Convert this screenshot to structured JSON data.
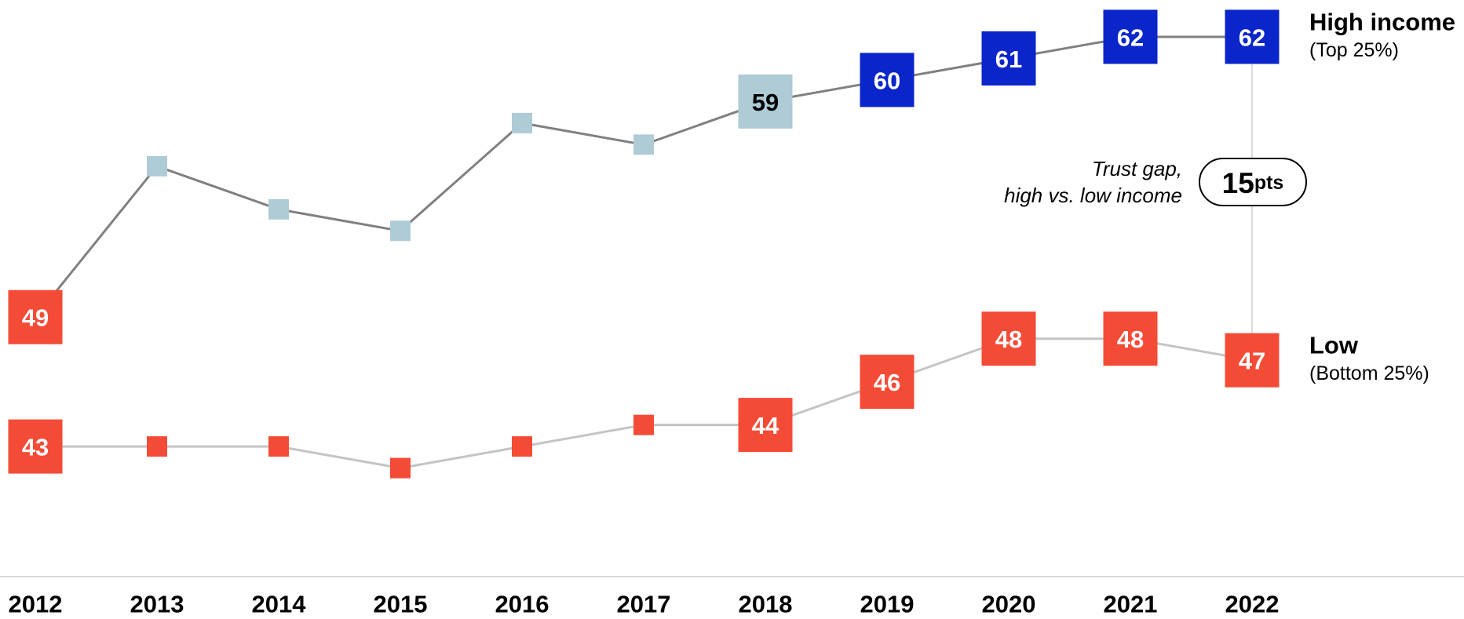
{
  "chart_data": {
    "type": "line",
    "categories": [
      "2012",
      "2013",
      "2014",
      "2015",
      "2016",
      "2017",
      "2018",
      "2019",
      "2020",
      "2021",
      "2022"
    ],
    "ylim": [
      37,
      64
    ],
    "series": [
      {
        "name": "High income",
        "sublabel": "(Top 25%)",
        "color": "#808080",
        "point_colors": [
          "#f44b36",
          "#aecbd6",
          "#aecbd6",
          "#aecbd6",
          "#aecbd6",
          "#aecbd6",
          "#aecbd6",
          "#0a25c9",
          "#0a25c9",
          "#0a25c9",
          "#0a25c9"
        ],
        "values": [
          49,
          56,
          54,
          53,
          58,
          57,
          59,
          60,
          61,
          62,
          62
        ],
        "value_labels": [
          "49",
          null,
          null,
          null,
          null,
          null,
          "59",
          "60",
          "61",
          "62",
          "62"
        ]
      },
      {
        "name": "Low",
        "sublabel": "(Bottom 25%)",
        "color": "#c4c4c4",
        "point_colors": [
          "#f44b36",
          "#f44b36",
          "#f44b36",
          "#f44b36",
          "#f44b36",
          "#f44b36",
          "#f44b36",
          "#f44b36",
          "#f44b36",
          "#f44b36",
          "#f44b36"
        ],
        "values": [
          43,
          43,
          43,
          42,
          43,
          44,
          44,
          46,
          48,
          48,
          47
        ],
        "value_labels": [
          "43",
          null,
          null,
          null,
          null,
          null,
          "44",
          "46",
          "48",
          "48",
          "47"
        ]
      }
    ],
    "annotation": {
      "lines": [
        "Trust gap,",
        "high vs. low income"
      ],
      "value": 15,
      "unit": "pts"
    }
  }
}
